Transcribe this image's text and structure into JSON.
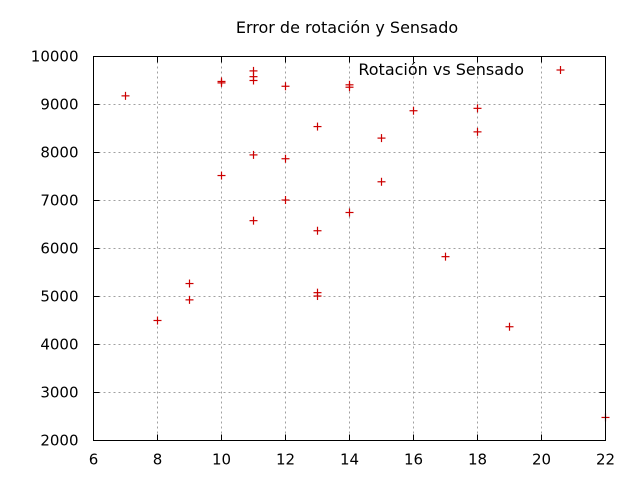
{
  "chart_data": {
    "type": "scatter",
    "title": "Error de rotación y Sensado",
    "xlabel": "",
    "ylabel": "",
    "xlim": [
      6,
      22
    ],
    "ylim": [
      2000,
      10000
    ],
    "x_ticks": [
      6,
      8,
      10,
      12,
      14,
      16,
      18,
      20,
      22
    ],
    "y_ticks": [
      2000,
      3000,
      4000,
      5000,
      6000,
      7000,
      8000,
      9000,
      10000
    ],
    "grid": true,
    "legend_position": "top-right",
    "colors": {
      "series": "#cc0000",
      "grid": "#a0a0a0",
      "axis": "#000000"
    },
    "series": [
      {
        "name": "Rotación vs Sensado",
        "marker": "plus",
        "points": [
          {
            "x": 7,
            "y": 9180
          },
          {
            "x": 8,
            "y": 4500
          },
          {
            "x": 9,
            "y": 5270
          },
          {
            "x": 9,
            "y": 4930
          },
          {
            "x": 10,
            "y": 9480
          },
          {
            "x": 10,
            "y": 9450
          },
          {
            "x": 10,
            "y": 7520
          },
          {
            "x": 11,
            "y": 9700
          },
          {
            "x": 11,
            "y": 9580
          },
          {
            "x": 11,
            "y": 9500
          },
          {
            "x": 11,
            "y": 7950
          },
          {
            "x": 11,
            "y": 6580
          },
          {
            "x": 12,
            "y": 9380
          },
          {
            "x": 12,
            "y": 7870
          },
          {
            "x": 12,
            "y": 7010
          },
          {
            "x": 13,
            "y": 8540
          },
          {
            "x": 13,
            "y": 6370
          },
          {
            "x": 13,
            "y": 5080
          },
          {
            "x": 13,
            "y": 5010
          },
          {
            "x": 14,
            "y": 9410
          },
          {
            "x": 14,
            "y": 9360
          },
          {
            "x": 14,
            "y": 6750
          },
          {
            "x": 15,
            "y": 8300
          },
          {
            "x": 15,
            "y": 7390
          },
          {
            "x": 16,
            "y": 8870
          },
          {
            "x": 17,
            "y": 5830
          },
          {
            "x": 18,
            "y": 8920
          },
          {
            "x": 18,
            "y": 8430
          },
          {
            "x": 19,
            "y": 4370
          },
          {
            "x": 22,
            "y": 2480
          }
        ]
      }
    ]
  }
}
